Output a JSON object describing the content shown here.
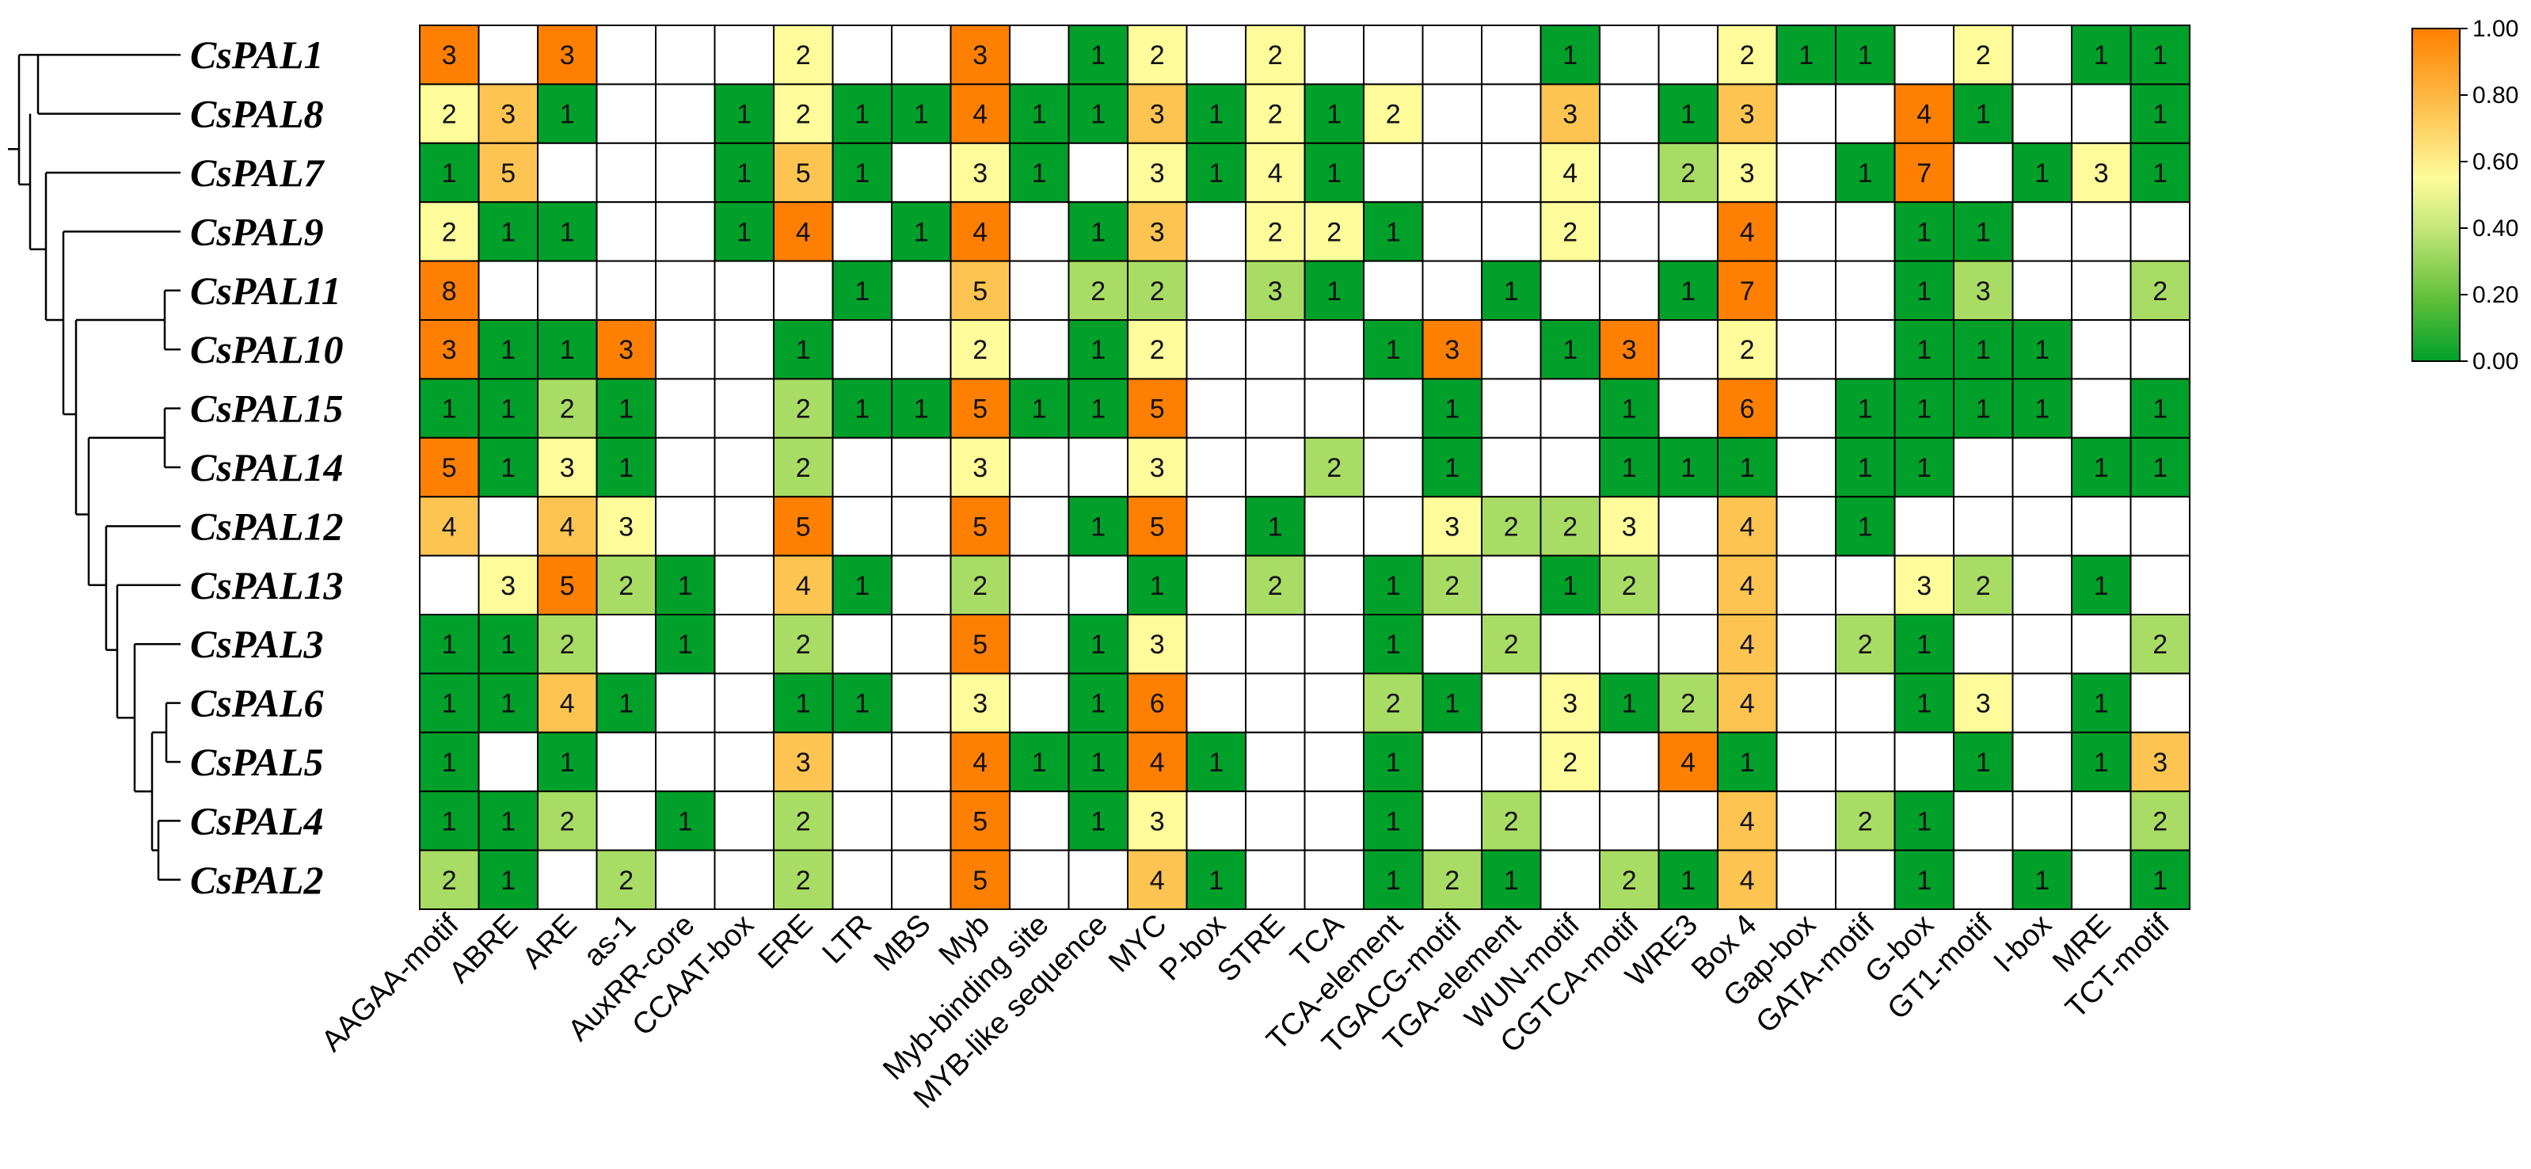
{
  "chart_data": {
    "type": "heatmap",
    "title": "",
    "rows": [
      "CsPAL1",
      "CsPAL8",
      "CsPAL7",
      "CsPAL9",
      "CsPAL11",
      "CsPAL10",
      "CsPAL15",
      "CsPAL14",
      "CsPAL12",
      "CsPAL13",
      "CsPAL3",
      "CsPAL6",
      "CsPAL5",
      "CsPAL4",
      "CsPAL2"
    ],
    "columns": [
      "AAGAA-motif",
      "ABRE",
      "ARE",
      "as-1",
      "AuxRR-core",
      "CCAAT-box",
      "ERE",
      "LTR",
      "MBS",
      "Myb",
      "Myb-binding site",
      "MYB-like sequence",
      "MYC",
      "P-box",
      "STRE",
      "TCA",
      "TCA-element",
      "TGACG-motif",
      "TGA-element",
      "WUN-motif",
      "CGTCA-motif",
      "WRE3",
      "Box 4",
      "Gap-box",
      "GATA-motif",
      "G-box",
      "GT1-motif",
      "I-box",
      "MRE",
      "TCT-motif"
    ],
    "values": [
      [
        3,
        0,
        3,
        0,
        0,
        0,
        2,
        0,
        0,
        3,
        0,
        1,
        2,
        0,
        2,
        0,
        0,
        0,
        0,
        1,
        0,
        0,
        2,
        1,
        1,
        0,
        2,
        0,
        1,
        1
      ],
      [
        2,
        3,
        1,
        0,
        0,
        1,
        2,
        1,
        1,
        4,
        1,
        1,
        3,
        1,
        2,
        1,
        2,
        0,
        0,
        3,
        0,
        1,
        3,
        0,
        0,
        4,
        1,
        0,
        0,
        1
      ],
      [
        1,
        5,
        0,
        0,
        0,
        1,
        5,
        1,
        0,
        3,
        1,
        0,
        3,
        1,
        4,
        1,
        0,
        0,
        0,
        4,
        0,
        2,
        3,
        0,
        1,
        7,
        0,
        1,
        3,
        1
      ],
      [
        2,
        1,
        1,
        0,
        0,
        1,
        4,
        0,
        1,
        4,
        0,
        1,
        3,
        0,
        2,
        2,
        1,
        0,
        0,
        2,
        0,
        0,
        4,
        0,
        0,
        1,
        1,
        0,
        0,
        0
      ],
      [
        8,
        0,
        0,
        0,
        0,
        0,
        0,
        1,
        0,
        5,
        0,
        2,
        2,
        0,
        3,
        1,
        0,
        0,
        1,
        0,
        0,
        1,
        7,
        0,
        0,
        1,
        3,
        0,
        0,
        2
      ],
      [
        3,
        1,
        1,
        3,
        0,
        0,
        1,
        0,
        0,
        2,
        0,
        1,
        2,
        0,
        0,
        0,
        1,
        3,
        0,
        1,
        3,
        0,
        2,
        0,
        0,
        1,
        1,
        1,
        0,
        0
      ],
      [
        1,
        1,
        2,
        1,
        0,
        0,
        2,
        1,
        1,
        5,
        1,
        1,
        5,
        0,
        0,
        0,
        0,
        1,
        0,
        0,
        1,
        0,
        6,
        0,
        1,
        1,
        1,
        1,
        0,
        1
      ],
      [
        5,
        1,
        3,
        1,
        0,
        0,
        2,
        0,
        0,
        3,
        0,
        0,
        3,
        0,
        0,
        2,
        0,
        1,
        0,
        0,
        1,
        1,
        1,
        0,
        1,
        1,
        0,
        0,
        1,
        1
      ],
      [
        4,
        0,
        4,
        3,
        0,
        0,
        5,
        0,
        0,
        5,
        0,
        1,
        5,
        0,
        1,
        0,
        0,
        3,
        2,
        2,
        3,
        0,
        4,
        0,
        1,
        0,
        0,
        0,
        0,
        0
      ],
      [
        0,
        3,
        5,
        2,
        1,
        0,
        4,
        1,
        0,
        2,
        0,
        0,
        1,
        0,
        2,
        0,
        1,
        2,
        0,
        1,
        2,
        0,
        4,
        0,
        0,
        3,
        2,
        0,
        1,
        0
      ],
      [
        1,
        1,
        2,
        0,
        1,
        0,
        2,
        0,
        0,
        5,
        0,
        1,
        3,
        0,
        0,
        0,
        1,
        0,
        2,
        0,
        0,
        0,
        4,
        0,
        2,
        1,
        0,
        0,
        0,
        2
      ],
      [
        1,
        1,
        4,
        1,
        0,
        0,
        1,
        1,
        0,
        3,
        0,
        1,
        6,
        0,
        0,
        0,
        2,
        1,
        0,
        3,
        1,
        2,
        4,
        0,
        0,
        1,
        3,
        0,
        1,
        0
      ],
      [
        1,
        0,
        1,
        0,
        0,
        0,
        3,
        0,
        0,
        4,
        1,
        1,
        4,
        1,
        0,
        0,
        1,
        0,
        0,
        2,
        0,
        4,
        1,
        0,
        0,
        0,
        1,
        0,
        1,
        3
      ],
      [
        1,
        1,
        2,
        0,
        1,
        0,
        2,
        0,
        0,
        5,
        0,
        1,
        3,
        0,
        0,
        0,
        1,
        0,
        2,
        0,
        0,
        0,
        4,
        0,
        2,
        1,
        0,
        0,
        0,
        2
      ],
      [
        2,
        1,
        0,
        2,
        0,
        0,
        2,
        0,
        0,
        5,
        0,
        0,
        4,
        1,
        0,
        0,
        1,
        2,
        1,
        0,
        2,
        1,
        4,
        0,
        0,
        1,
        0,
        1,
        0,
        1
      ]
    ],
    "colorbar": {
      "ticks": [
        "1.00",
        "0.80",
        "0.60",
        "0.40",
        "0.20",
        "0.00"
      ],
      "colors": {
        "low": "#00a02a",
        "mid_low": "#a9dc64",
        "mid": "#fdfb9a",
        "mid_high": "#fdc451",
        "high": "#ff8000",
        "empty": "#ffffff"
      }
    }
  }
}
